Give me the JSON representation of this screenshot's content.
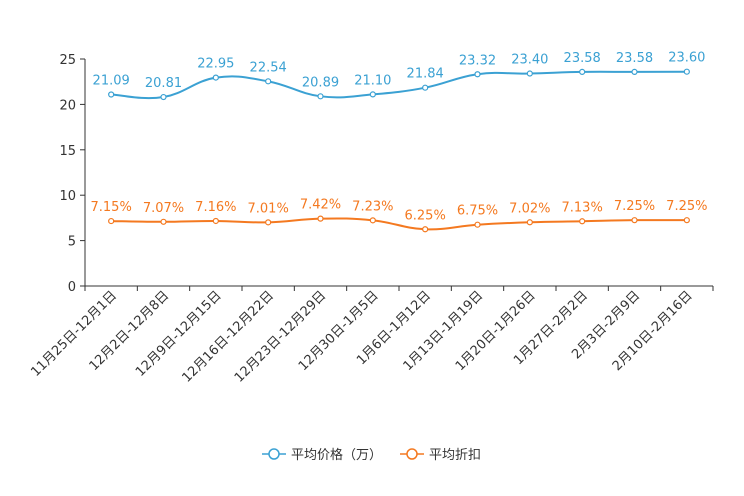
{
  "chart_data": {
    "type": "line",
    "categories": [
      "11月25日-12月1日",
      "12月2日-12月8日",
      "12月9日-12月15日",
      "12月16日-12月22日",
      "12月23日-12月29日",
      "12月30日-1月5日",
      "1月6日-1月12日",
      "1月13日-1月19日",
      "1月20日-1月26日",
      "1月27日-2月2日",
      "2月3日-2月9日",
      "2月10日-2月16日"
    ],
    "series": [
      {
        "name": "平均价格（万）",
        "color": "#3ba1d3",
        "values": [
          21.09,
          20.81,
          22.95,
          22.54,
          20.89,
          21.1,
          21.84,
          23.32,
          23.4,
          23.58,
          23.58,
          23.6
        ],
        "labels": [
          "21.09",
          "20.81",
          "22.95",
          "22.54",
          "20.89",
          "21.10",
          "21.84",
          "23.32",
          "23.40",
          "23.58",
          "23.58",
          "23.60"
        ]
      },
      {
        "name": "平均折扣",
        "color": "#f47920",
        "values": [
          7.15,
          7.07,
          7.16,
          7.01,
          7.42,
          7.23,
          6.25,
          6.75,
          7.02,
          7.13,
          7.25,
          7.25
        ],
        "labels": [
          "7.15%",
          "7.07%",
          "7.16%",
          "7.01%",
          "7.42%",
          "7.23%",
          "6.25%",
          "6.75%",
          "7.02%",
          "7.13%",
          "7.25%",
          "7.25%"
        ]
      }
    ],
    "yticks": [
      "0",
      "5",
      "10",
      "15",
      "20",
      "25"
    ],
    "ylim": [
      0,
      25
    ],
    "legend_position": "bottom-center"
  }
}
